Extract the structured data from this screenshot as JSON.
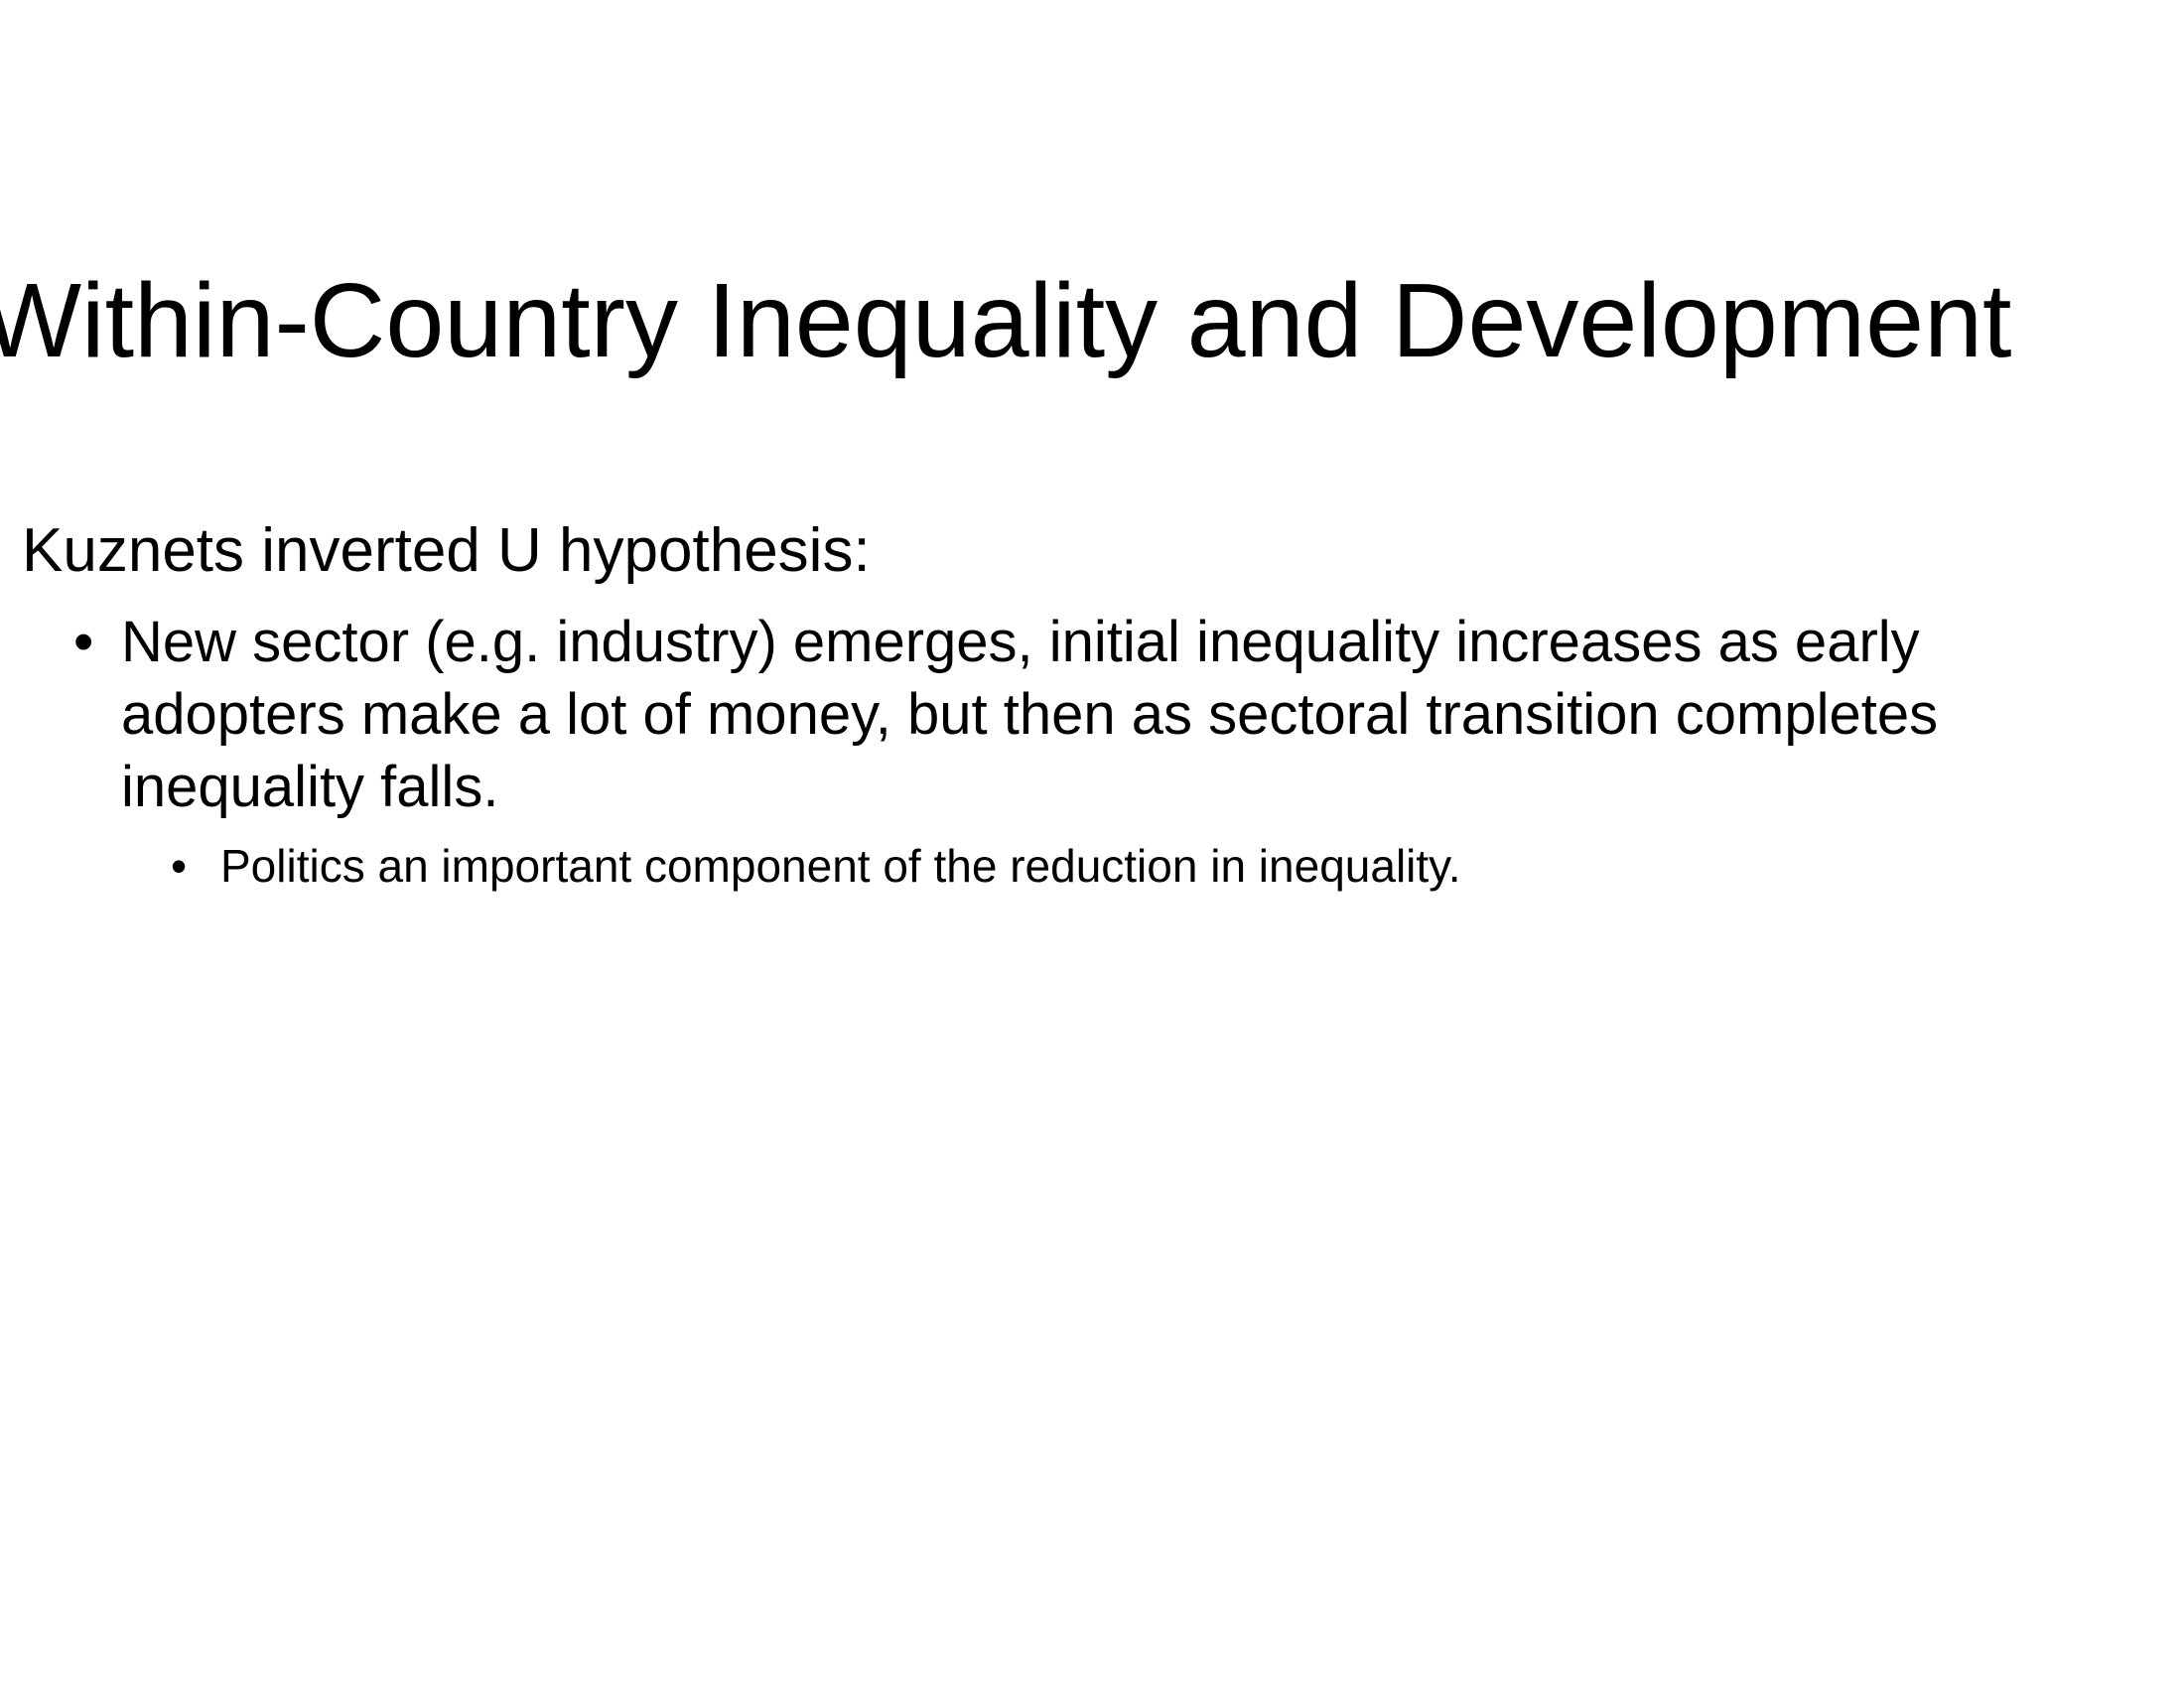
{
  "slide": {
    "title": "Within-Country Inequality and Development",
    "content": {
      "heading": "Kuznets inverted U hypothesis:",
      "bullet_glyph": "•",
      "bullets": [
        {
          "text": "New sector (e.g. industry) emerges, initial inequality increases as early adopters make a lot of money, but then as sectoral transition completes inequality falls.",
          "sub_bullets": [
            {
              "text": "Politics an important component of the reduction in inequality."
            }
          ]
        }
      ]
    }
  }
}
